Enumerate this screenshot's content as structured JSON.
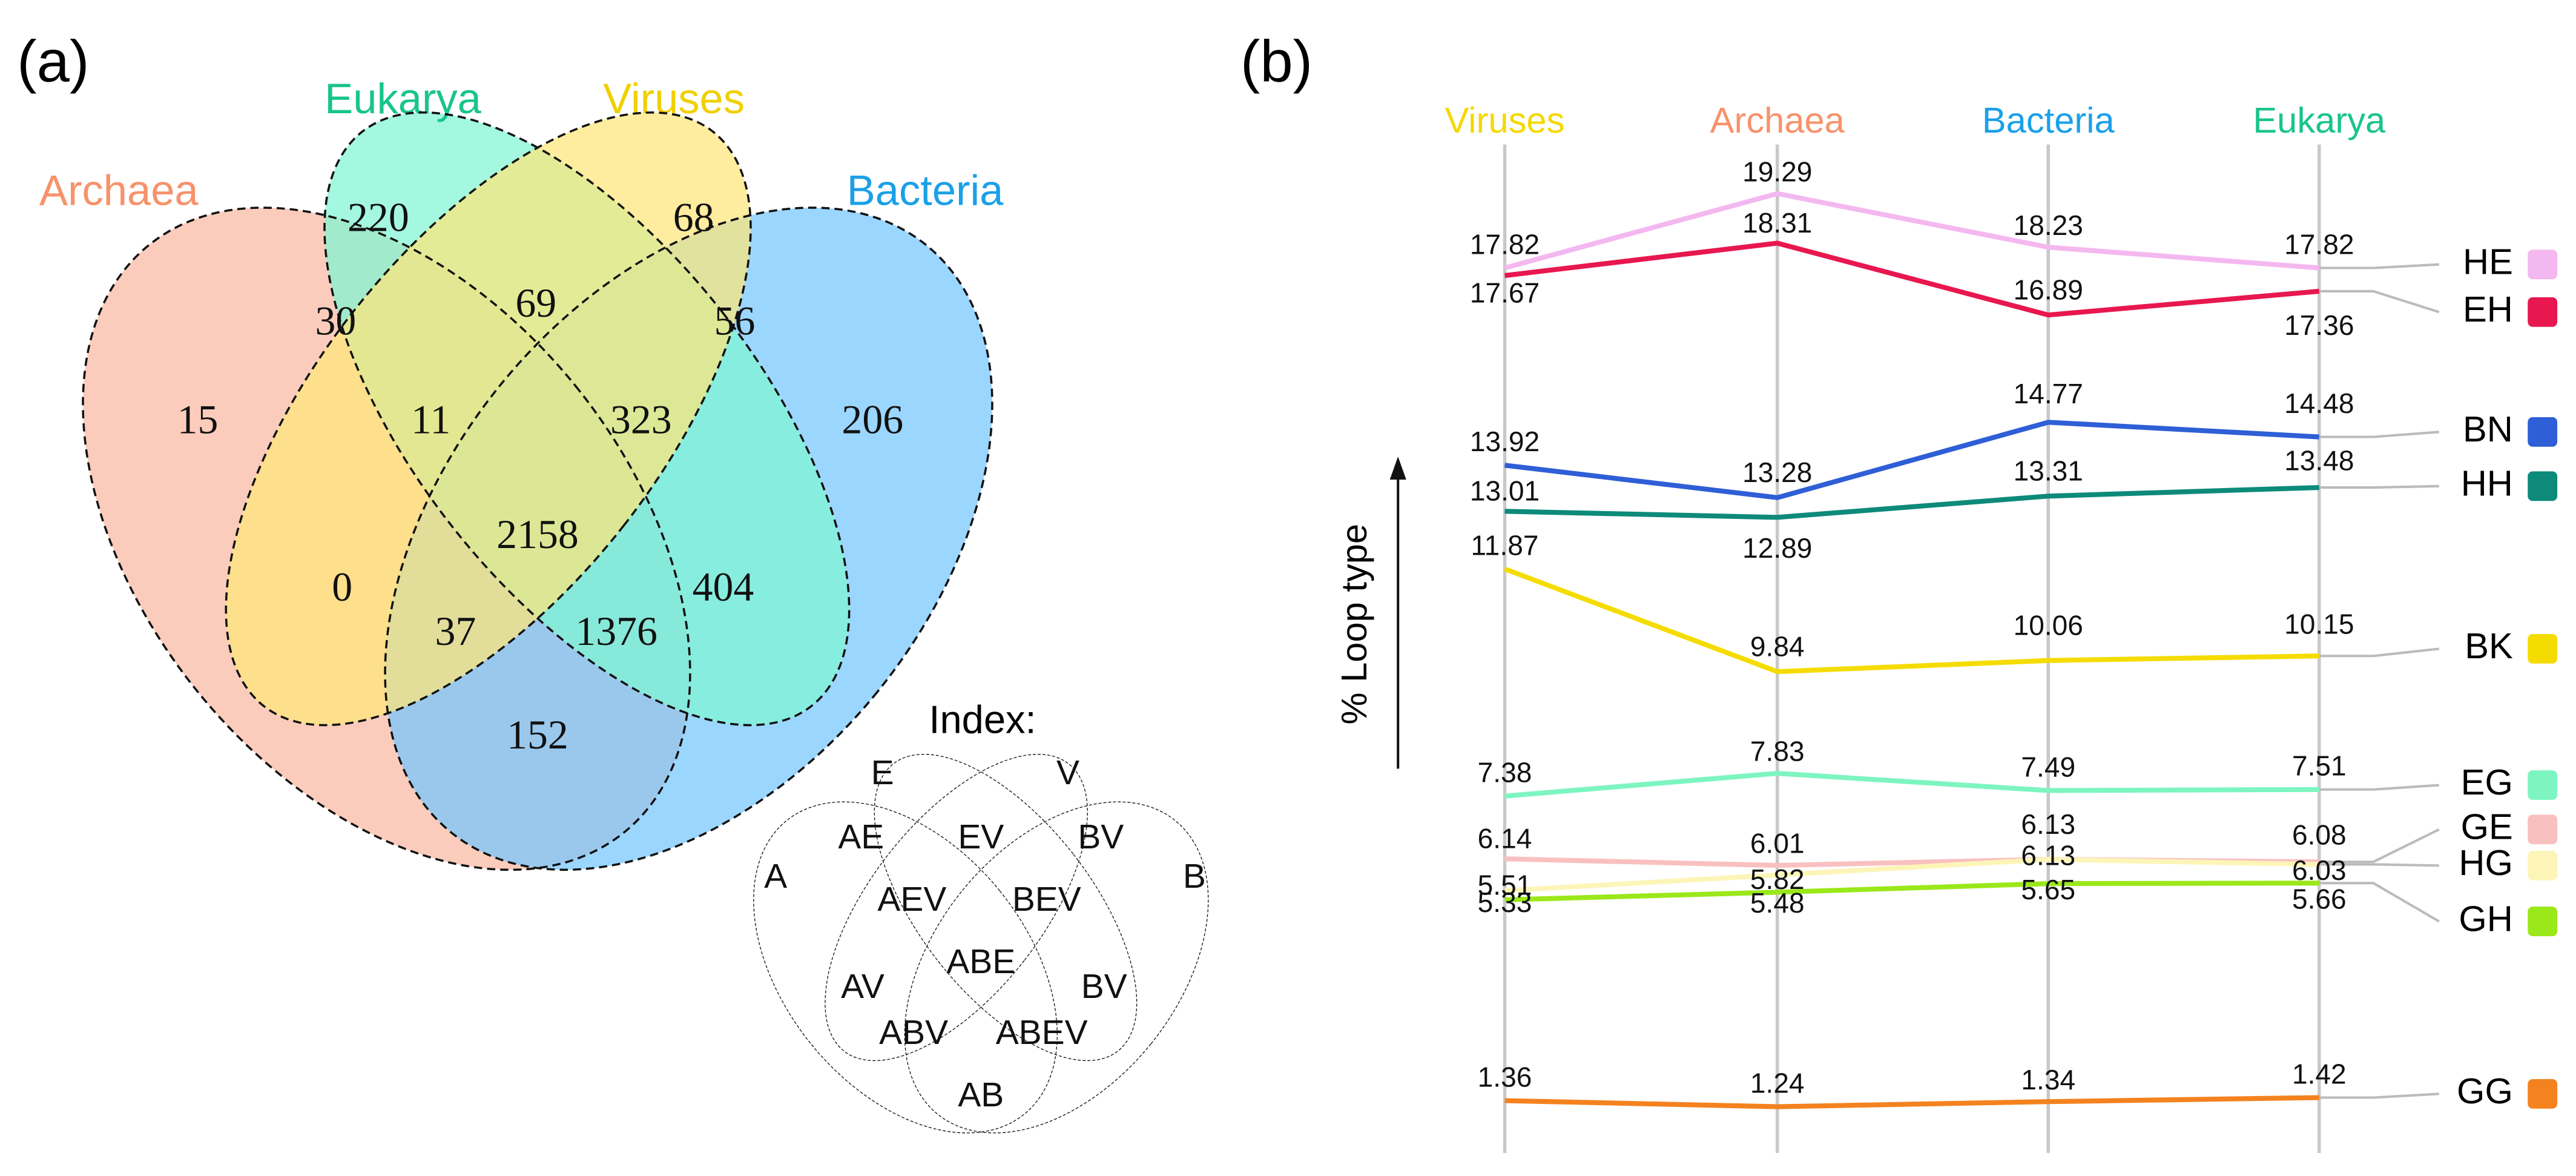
{
  "chart_data": [
    {
      "type": "venn",
      "title": "(a)",
      "sets": [
        {
          "name": "Archaea",
          "color": "#f9b9a2",
          "label_color": "#f7926b"
        },
        {
          "name": "Bacteria",
          "color": "#74c6ff",
          "label_color": "#1ba0e8"
        },
        {
          "name": "Eukarya",
          "color": "#7ff5d2",
          "label_color": "#19c48c"
        },
        {
          "name": "Viruses",
          "color": "#fde67a",
          "label_color": "#f0d000"
        }
      ],
      "regions": [
        220,
        68,
        30,
        69,
        56,
        15,
        11,
        323,
        206,
        2158,
        0,
        404,
        37,
        1376,
        152
      ],
      "index": {
        "title": "Index:",
        "labels": [
          "E",
          "V",
          "A",
          "B",
          "AE",
          "EV",
          "BV",
          "AEV",
          "BEV",
          "ABE",
          "AV",
          "BV",
          "ABV",
          "ABEV",
          "AB"
        ]
      }
    },
    {
      "type": "line",
      "title": "(b)",
      "categories": [
        "Viruses",
        "Archaea",
        "Bacteria",
        "Eukarya"
      ],
      "category_colors": [
        "#f5d800",
        "#f7926b",
        "#1ba0e8",
        "#19c48c"
      ],
      "ylabel": "% Loop type",
      "ylim": [
        0,
        20
      ],
      "series": [
        {
          "name": "HE",
          "color": "#f4b8f0",
          "values": [
            17.82,
            19.29,
            18.23,
            17.82
          ]
        },
        {
          "name": "EH",
          "color": "#e8174f",
          "values": [
            17.67,
            18.31,
            16.89,
            17.36
          ]
        },
        {
          "name": "BN",
          "color": "#2f5fd6",
          "values": [
            13.92,
            13.28,
            14.77,
            14.48
          ]
        },
        {
          "name": "HH",
          "color": "#0d8a7a",
          "values": [
            13.01,
            12.89,
            13.31,
            13.48
          ]
        },
        {
          "name": "BK",
          "color": "#f5dc00",
          "values": [
            11.87,
            9.84,
            10.06,
            10.15
          ]
        },
        {
          "name": "EG",
          "color": "#7df5c0",
          "values": [
            7.38,
            7.83,
            7.49,
            7.51
          ]
        },
        {
          "name": "GE",
          "color": "#f9c0c0",
          "values": [
            6.14,
            6.01,
            6.13,
            6.08
          ]
        },
        {
          "name": "HG",
          "color": "#fdf5b8",
          "values": [
            5.51,
            5.82,
            6.13,
            6.03
          ]
        },
        {
          "name": "GH",
          "color": "#9be81a",
          "values": [
            5.33,
            5.48,
            5.65,
            5.66
          ]
        },
        {
          "name": "GG",
          "color": "#f4821f",
          "values": [
            1.36,
            1.24,
            1.34,
            1.42
          ]
        }
      ]
    }
  ]
}
